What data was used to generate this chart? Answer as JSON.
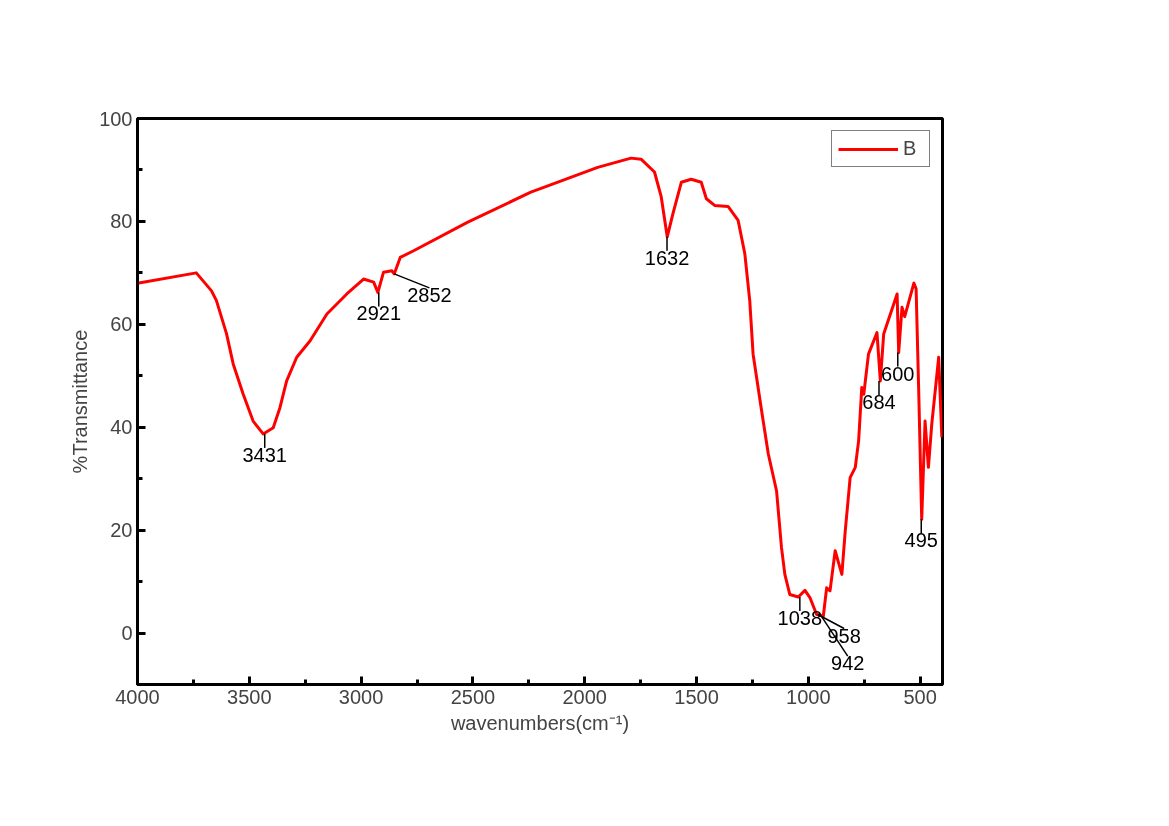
{
  "chart_data": {
    "type": "line",
    "xlabel": "wavenumbers(cm⁻¹)",
    "ylabel": "%Transmittance",
    "xlim": [
      4000,
      400
    ],
    "ylim": [
      -10,
      100
    ],
    "xticks": [
      4000,
      3500,
      3000,
      2500,
      2000,
      1500,
      1000,
      500
    ],
    "yticks": [
      0,
      20,
      40,
      60,
      80,
      100
    ],
    "grid": false,
    "legend": "top right",
    "series": [
      {
        "name": "B",
        "color": "#ff0000",
        "x": [
          4000,
          4000,
          3737,
          3669,
          3647,
          3602,
          3572,
          3528,
          3483,
          3438,
          3393,
          3363,
          3333,
          3288,
          3228,
          3153,
          3064,
          2989,
          2944,
          2925,
          2900,
          2862,
          2852,
          2825,
          2765,
          2525,
          2241,
          2159,
          1942,
          1793,
          1748,
          1688,
          1658,
          1631,
          1606,
          1568,
          1524,
          1479,
          1456,
          1419,
          1359,
          1314,
          1284,
          1262,
          1247,
          1209,
          1179,
          1142,
          1120,
          1105,
          1083,
          1045,
          1015,
          993,
          963,
          933,
          918,
          903,
          880,
          865,
          850,
          835,
          813,
          790,
          775,
          761,
          752,
          731,
          693,
          678,
          663,
          603,
          596,
          581,
          569,
          528,
          518,
          506,
          493,
          478,
          463,
          448,
          417,
          403
        ],
        "values": [
          0,
          68.0,
          70.0,
          66.5,
          64.6,
          58.2,
          52.3,
          46.5,
          41.2,
          38.7,
          39.9,
          43.8,
          49.0,
          53.6,
          56.8,
          62.0,
          65.9,
          68.8,
          68.2,
          66.2,
          70.1,
          70.4,
          69.8,
          73.0,
          74.3,
          79.8,
          85.7,
          87.0,
          90.5,
          92.3,
          92.1,
          89.6,
          84.8,
          77.0,
          81.4,
          87.6,
          88.2,
          87.6,
          84.4,
          83.1,
          82.9,
          80.2,
          73.7,
          64.6,
          54.2,
          43.2,
          34.8,
          27.6,
          16.6,
          11.4,
          7.5,
          7.0,
          8.3,
          6.9,
          3.6,
          3.3,
          8.8,
          8.2,
          16.0,
          13.7,
          11.4,
          19.8,
          30.2,
          32.2,
          37.4,
          47.7,
          46.4,
          54.2,
          58.4,
          49.0,
          58.1,
          65.9,
          54.5,
          63.3,
          61.5,
          68.0,
          66.9,
          46.4,
          22.1,
          41.2,
          32.2,
          40.6,
          53.6,
          38.0
        ]
      }
    ],
    "annotations": [
      {
        "text": "3431",
        "x": 3431,
        "y": 38.7
      },
      {
        "text": "2921",
        "x": 2921,
        "y": 66.2
      },
      {
        "text": "2852",
        "x": 2852,
        "y": 69.8
      },
      {
        "text": "1632",
        "x": 1632,
        "y": 77.0
      },
      {
        "text": "1038",
        "x": 1038,
        "y": 7.0
      },
      {
        "text": "958",
        "x": 958,
        "y": 3.6
      },
      {
        "text": "942",
        "x": 942,
        "y": 3.3
      },
      {
        "text": "684",
        "x": 684,
        "y": 49.0
      },
      {
        "text": "600",
        "x": 600,
        "y": 54.5
      },
      {
        "text": "495",
        "x": 495,
        "y": 22.1
      }
    ]
  }
}
